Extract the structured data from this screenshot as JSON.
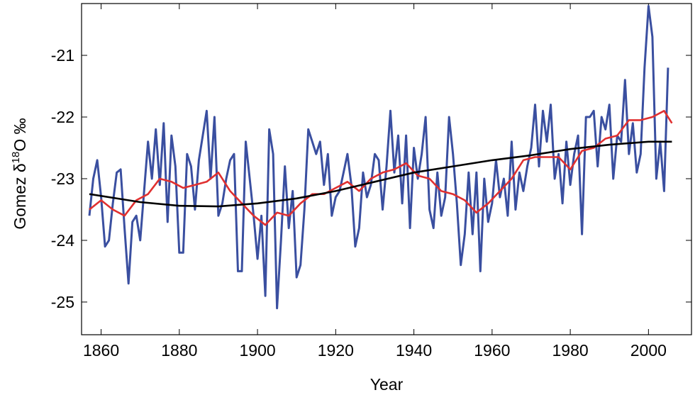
{
  "chart_data": {
    "type": "line",
    "xlabel": "Year",
    "ylabel_parts": [
      "Gomez δ",
      "18",
      "O ‰"
    ],
    "xlim": [
      1855,
      2011
    ],
    "xticks": [
      1860,
      1880,
      1900,
      1920,
      1940,
      1960,
      1980,
      2000
    ],
    "ylim": [
      -25.53,
      -20.16
    ],
    "yticks": [
      -25,
      -24,
      -23,
      -22,
      -21
    ],
    "series": [
      {
        "color": "#3a4fa0",
        "x": [
          1857,
          1858,
          1859,
          1860,
          1861,
          1862,
          1863,
          1864,
          1865,
          1866,
          1867,
          1868,
          1869,
          1870,
          1871,
          1872,
          1873,
          1874,
          1875,
          1876,
          1877,
          1878,
          1879,
          1880,
          1881,
          1882,
          1883,
          1884,
          1885,
          1886,
          1887,
          1888,
          1889,
          1890,
          1891,
          1892,
          1893,
          1894,
          1895,
          1896,
          1897,
          1898,
          1899,
          1900,
          1901,
          1902,
          1903,
          1904,
          1905,
          1906,
          1907,
          1908,
          1909,
          1910,
          1911,
          1912,
          1913,
          1914,
          1915,
          1916,
          1917,
          1918,
          1919,
          1920,
          1921,
          1922,
          1923,
          1924,
          1925,
          1926,
          1927,
          1928,
          1929,
          1930,
          1931,
          1932,
          1933,
          1934,
          1935,
          1936,
          1937,
          1938,
          1939,
          1940,
          1941,
          1942,
          1943,
          1944,
          1945,
          1946,
          1947,
          1948,
          1949,
          1950,
          1951,
          1952,
          1953,
          1954,
          1955,
          1956,
          1957,
          1958,
          1959,
          1960,
          1961,
          1962,
          1963,
          1964,
          1965,
          1966,
          1967,
          1968,
          1969,
          1970,
          1971,
          1972,
          1973,
          1974,
          1975,
          1976,
          1977,
          1978,
          1979,
          1980,
          1981,
          1982,
          1983,
          1984,
          1985,
          1986,
          1987,
          1988,
          1989,
          1990,
          1991,
          1992,
          1993,
          1994,
          1995,
          1996,
          1997,
          1998,
          1999,
          2000,
          2001,
          2002,
          2003,
          2004,
          2005
        ],
        "values": [
          -23.6,
          -23.0,
          -22.7,
          -23.3,
          -24.1,
          -24.0,
          -23.4,
          -22.9,
          -22.85,
          -23.8,
          -24.7,
          -23.7,
          -23.6,
          -24.0,
          -23.2,
          -22.4,
          -23.0,
          -22.2,
          -23.1,
          -22.1,
          -23.7,
          -22.3,
          -22.8,
          -24.2,
          -24.2,
          -22.6,
          -22.8,
          -23.5,
          -22.7,
          -22.3,
          -21.9,
          -23.0,
          -22.0,
          -23.6,
          -23.4,
          -23.0,
          -22.7,
          -22.6,
          -24.5,
          -24.5,
          -22.4,
          -23.0,
          -23.6,
          -24.3,
          -23.6,
          -24.9,
          -22.2,
          -22.6,
          -25.1,
          -24.0,
          -22.8,
          -23.8,
          -23.2,
          -24.6,
          -24.4,
          -23.5,
          -22.2,
          -22.4,
          -22.6,
          -22.4,
          -23.1,
          -22.6,
          -23.6,
          -23.3,
          -23.2,
          -22.9,
          -22.6,
          -23.1,
          -24.1,
          -23.8,
          -22.9,
          -23.3,
          -23.1,
          -22.6,
          -22.7,
          -23.5,
          -22.8,
          -21.9,
          -22.9,
          -22.3,
          -23.4,
          -22.3,
          -23.8,
          -22.5,
          -23.0,
          -22.6,
          -22.0,
          -23.5,
          -23.8,
          -22.9,
          -23.6,
          -23.3,
          -22.0,
          -22.6,
          -23.4,
          -24.4,
          -23.9,
          -22.9,
          -23.9,
          -22.9,
          -24.5,
          -23.0,
          -23.7,
          -23.4,
          -22.7,
          -23.3,
          -23.0,
          -23.6,
          -22.4,
          -23.5,
          -22.9,
          -23.2,
          -22.8,
          -22.5,
          -21.8,
          -22.8,
          -21.9,
          -22.4,
          -21.8,
          -23.0,
          -22.6,
          -23.4,
          -22.4,
          -23.1,
          -22.6,
          -22.3,
          -23.9,
          -22.0,
          -22.0,
          -21.9,
          -22.8,
          -22.0,
          -22.2,
          -21.8,
          -23.0,
          -22.3,
          -22.4,
          -21.4,
          -22.6,
          -22.1,
          -22.9,
          -22.6,
          -21.2,
          -20.2,
          -20.7,
          -23.0,
          -22.4,
          -23.2,
          -21.2
        ]
      },
      {
        "color": "#e03030",
        "x": [
          1857,
          1860,
          1863,
          1866,
          1869,
          1872,
          1875,
          1878,
          1881,
          1884,
          1887,
          1890,
          1893,
          1896,
          1899,
          1902,
          1905,
          1908,
          1911,
          1914,
          1917,
          1920,
          1923,
          1926,
          1929,
          1932,
          1935,
          1938,
          1941,
          1944,
          1947,
          1950,
          1953,
          1956,
          1959,
          1962,
          1965,
          1968,
          1971,
          1974,
          1977,
          1980,
          1983,
          1986,
          1989,
          1992,
          1995,
          1998,
          2001,
          2004,
          2006
        ],
        "values": [
          -23.5,
          -23.35,
          -23.5,
          -23.6,
          -23.35,
          -23.25,
          -23.0,
          -23.05,
          -23.15,
          -23.1,
          -23.05,
          -22.9,
          -23.2,
          -23.4,
          -23.6,
          -23.75,
          -23.55,
          -23.6,
          -23.4,
          -23.25,
          -23.25,
          -23.15,
          -23.05,
          -23.2,
          -23.0,
          -22.9,
          -22.85,
          -22.75,
          -22.95,
          -23.0,
          -23.2,
          -23.25,
          -23.35,
          -23.55,
          -23.4,
          -23.2,
          -23.0,
          -22.7,
          -22.65,
          -22.65,
          -22.65,
          -22.85,
          -22.55,
          -22.5,
          -22.35,
          -22.3,
          -22.05,
          -22.05,
          -22.0,
          -21.9,
          -22.1
        ]
      },
      {
        "color": "#000000",
        "x": [
          1857,
          1870,
          1880,
          1890,
          1900,
          1910,
          1920,
          1930,
          1940,
          1950,
          1960,
          1970,
          1980,
          1990,
          2000,
          2006
        ],
        "values": [
          -23.25,
          -23.38,
          -23.44,
          -23.45,
          -23.4,
          -23.32,
          -23.2,
          -23.05,
          -22.9,
          -22.8,
          -22.7,
          -22.62,
          -22.52,
          -22.45,
          -22.4,
          -22.4
        ]
      }
    ]
  }
}
